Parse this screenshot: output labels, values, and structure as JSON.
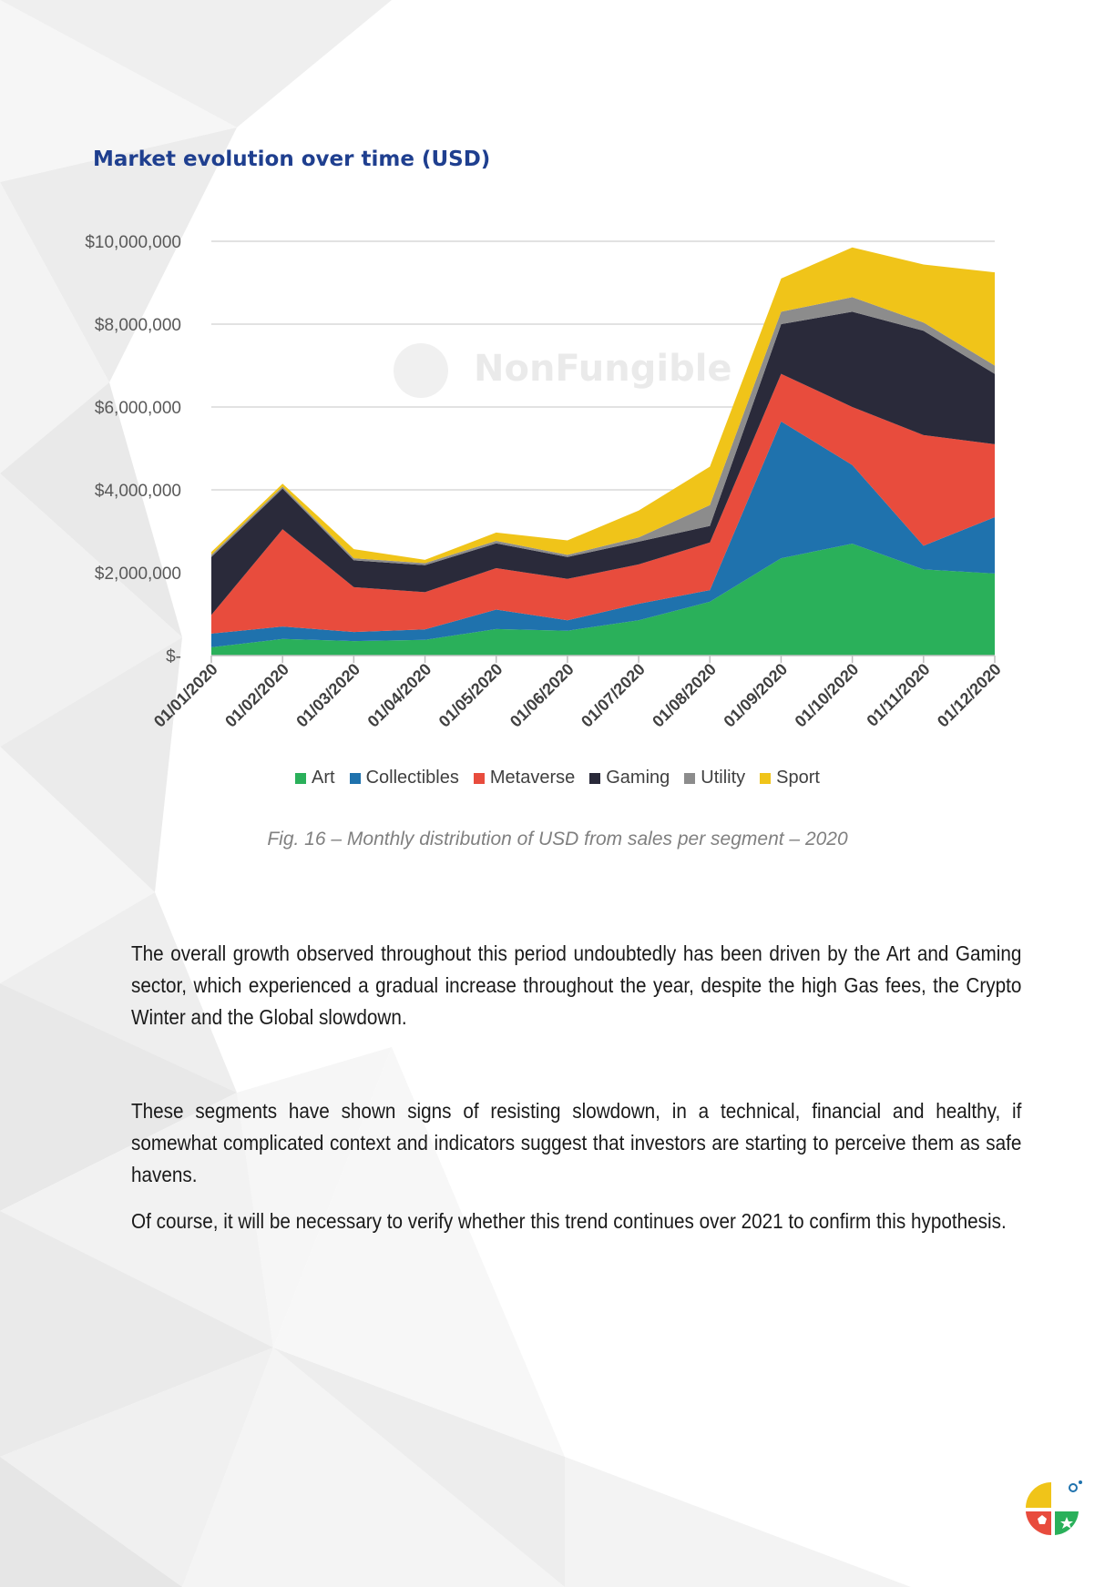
{
  "page": {
    "title": "Market evolution over time (USD)",
    "caption": "Fig. 16 – Monthly distribution of USD from sales per segment – 2020",
    "paragraphs": [
      "The overall growth observed throughout this period undoubtedly has been driven by the Art and Gaming sector, which experienced a gradual increase throughout the year, despite the high Gas fees, the Crypto Winter and the Global slowdown.",
      "These segments have shown signs of resisting slowdown, in a technical, financial and healthy, if somewhat complicated context and indicators suggest that investors are starting to perceive them as safe havens.",
      "Of course, it will be necessary to verify whether this trend continues over 2021 to confirm this hypothesis."
    ],
    "watermark": "NonFungible"
  },
  "chart_data": {
    "type": "area",
    "stacked": true,
    "title": "",
    "xlabel": "",
    "ylabel": "",
    "x": [
      "01/01/2020",
      "01/02/2020",
      "01/03/2020",
      "01/04/2020",
      "01/05/2020",
      "01/06/2020",
      "01/07/2020",
      "01/08/2020",
      "01/09/2020",
      "01/10/2020",
      "01/11/2020",
      "01/12/2020"
    ],
    "ylim": [
      0,
      10000000
    ],
    "yticks": [
      0,
      2000000,
      4000000,
      6000000,
      8000000,
      10000000
    ],
    "ytick_labels": [
      "$-",
      "$2,000,000",
      "$4,000,000",
      "$6,000,000",
      "$8,000,000",
      "$10,000,000"
    ],
    "grid": true,
    "legend_position": "bottom",
    "series": [
      {
        "name": "Art",
        "color": "#2ab05a",
        "values": [
          200000,
          400000,
          350000,
          380000,
          640000,
          600000,
          850000,
          1300000,
          2350000,
          2700000,
          2080000,
          1980000
        ]
      },
      {
        "name": "Collectibles",
        "color": "#1f72ad",
        "values": [
          330000,
          300000,
          220000,
          250000,
          470000,
          250000,
          400000,
          280000,
          3300000,
          1900000,
          570000,
          1360000
        ]
      },
      {
        "name": "Metaverse",
        "color": "#e84c3d",
        "values": [
          450000,
          2350000,
          1080000,
          900000,
          1000000,
          1000000,
          950000,
          1150000,
          1150000,
          1400000,
          2670000,
          1760000
        ]
      },
      {
        "name": "Gaming",
        "color": "#2a2a3a",
        "values": [
          1400000,
          980000,
          650000,
          650000,
          600000,
          530000,
          550000,
          400000,
          1200000,
          2300000,
          2520000,
          1700000
        ]
      },
      {
        "name": "Utility",
        "color": "#8c8c8c",
        "values": [
          50000,
          50000,
          50000,
          50000,
          60000,
          50000,
          100000,
          500000,
          300000,
          350000,
          200000,
          200000
        ]
      },
      {
        "name": "Sport",
        "color": "#f0c419",
        "values": [
          70000,
          70000,
          220000,
          80000,
          200000,
          350000,
          650000,
          930000,
          800000,
          1200000,
          1400000,
          2250000
        ]
      }
    ]
  }
}
